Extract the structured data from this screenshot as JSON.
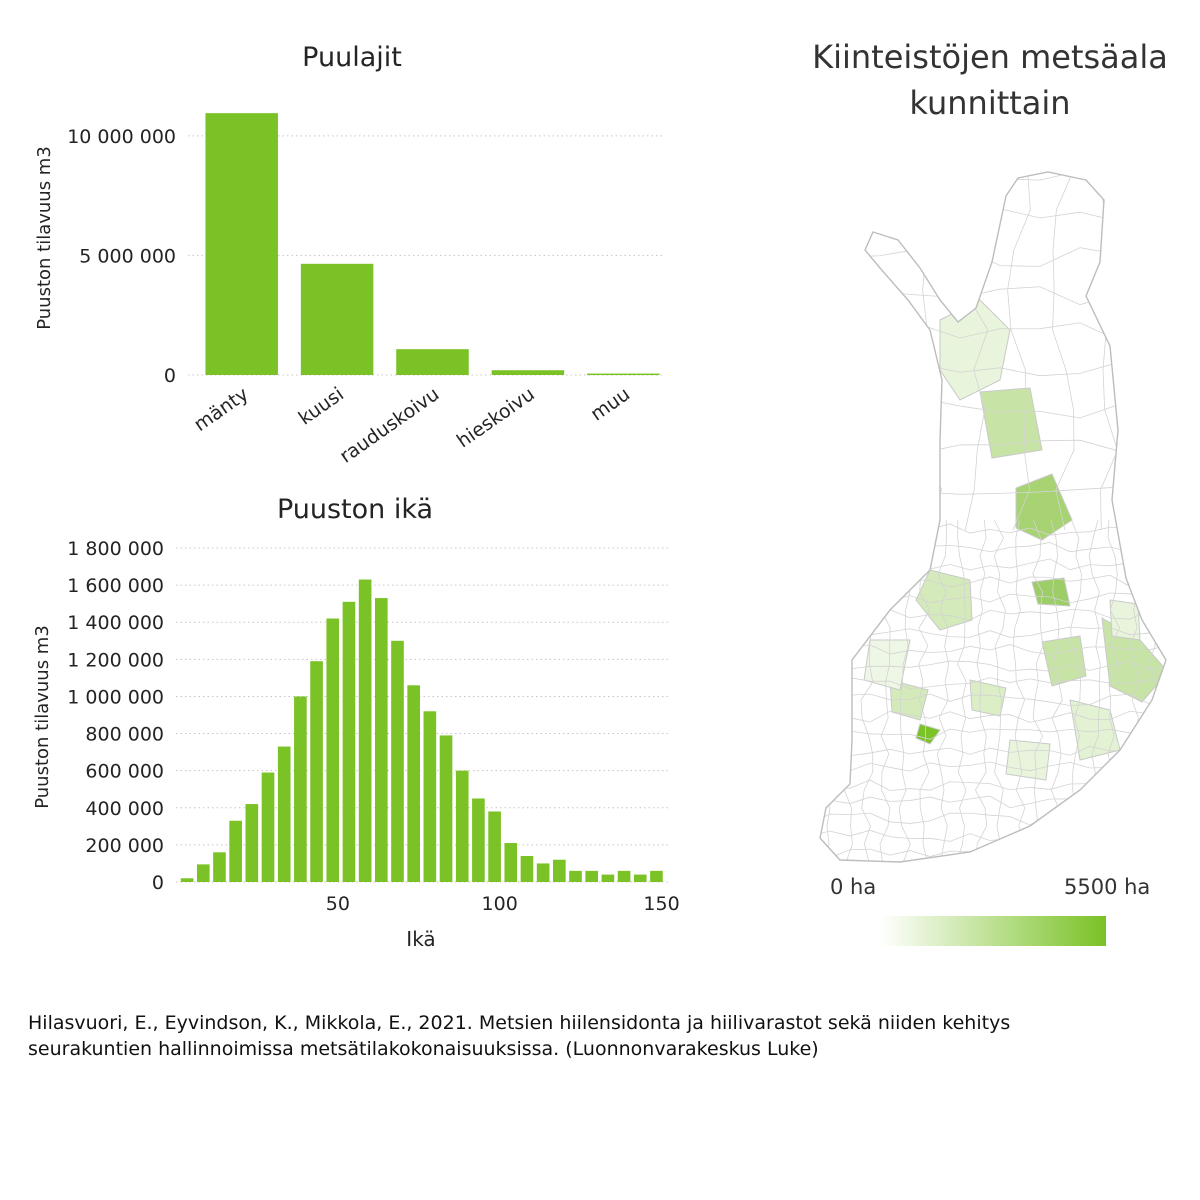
{
  "chart_data": [
    {
      "type": "bar",
      "title": "Puulajit",
      "ylabel": "Puuston tilavuus m3",
      "xlabel": "",
      "categories": [
        "mänty",
        "kuusi",
        "rauduskoivu",
        "hieskoivu",
        "muu"
      ],
      "values": [
        10950000,
        4650000,
        1080000,
        200000,
        60000
      ],
      "ylim": [
        0,
        11500000
      ],
      "yticks": [
        {
          "value": 0,
          "label": "0"
        },
        {
          "value": 5000000,
          "label": "5 000 000"
        },
        {
          "value": 10000000,
          "label": "10 000 000"
        }
      ],
      "grid": true,
      "color": "#7ac226"
    },
    {
      "type": "bar",
      "title": "Puuston ikä",
      "ylabel": "Puuston tilavuus m3",
      "xlabel": "Ikä",
      "x": [
        5,
        10,
        15,
        20,
        25,
        30,
        35,
        40,
        45,
        50,
        55,
        60,
        65,
        70,
        75,
        80,
        85,
        90,
        95,
        100,
        105,
        110,
        115,
        120,
        125,
        130,
        135,
        140,
        145,
        150
      ],
      "values": [
        20000,
        95000,
        160000,
        330000,
        420000,
        590000,
        730000,
        1000000,
        1190000,
        1420000,
        1510000,
        1630000,
        1530000,
        1300000,
        1060000,
        920000,
        790000,
        600000,
        450000,
        380000,
        210000,
        140000,
        100000,
        120000,
        60000,
        60000,
        40000,
        60000,
        40000,
        60000
      ],
      "xlim": [
        0,
        152
      ],
      "ylim": [
        0,
        1800000
      ],
      "xticks": [
        {
          "value": 50,
          "label": "50"
        },
        {
          "value": 100,
          "label": "100"
        },
        {
          "value": 150,
          "label": "150"
        }
      ],
      "yticks": [
        {
          "value": 0,
          "label": "0"
        },
        {
          "value": 200000,
          "label": "200 000"
        },
        {
          "value": 400000,
          "label": "400 000"
        },
        {
          "value": 600000,
          "label": "600 000"
        },
        {
          "value": 800000,
          "label": "800 000"
        },
        {
          "value": 1000000,
          "label": "1 000 000"
        },
        {
          "value": 1200000,
          "label": "1 200 000"
        },
        {
          "value": 1400000,
          "label": "1 400 000"
        },
        {
          "value": 1600000,
          "label": "1 600 000"
        },
        {
          "value": 1800000,
          "label": "1 800 000"
        }
      ],
      "grid": true,
      "color": "#7ac226"
    }
  ],
  "map": {
    "title_line1": "Kiinteistöjen metsäala",
    "title_line2": "kunnittain",
    "legend_min": "0 ha",
    "legend_max": "5500 ha",
    "color_low": "#ffffff",
    "color_high": "#7ac226",
    "border_color": "#c9c9c9"
  },
  "citation": {
    "line1": "Hilasvuori, E., Eyvindson, K., Mikkola, E., 2021. Metsien hiilensidonta ja hiilivarastot sekä niiden kehitys",
    "line2": "seurakuntien hallinnoimissa metsätilakokonaisuuksissa. (Luonnonvarakeskus Luke)"
  }
}
